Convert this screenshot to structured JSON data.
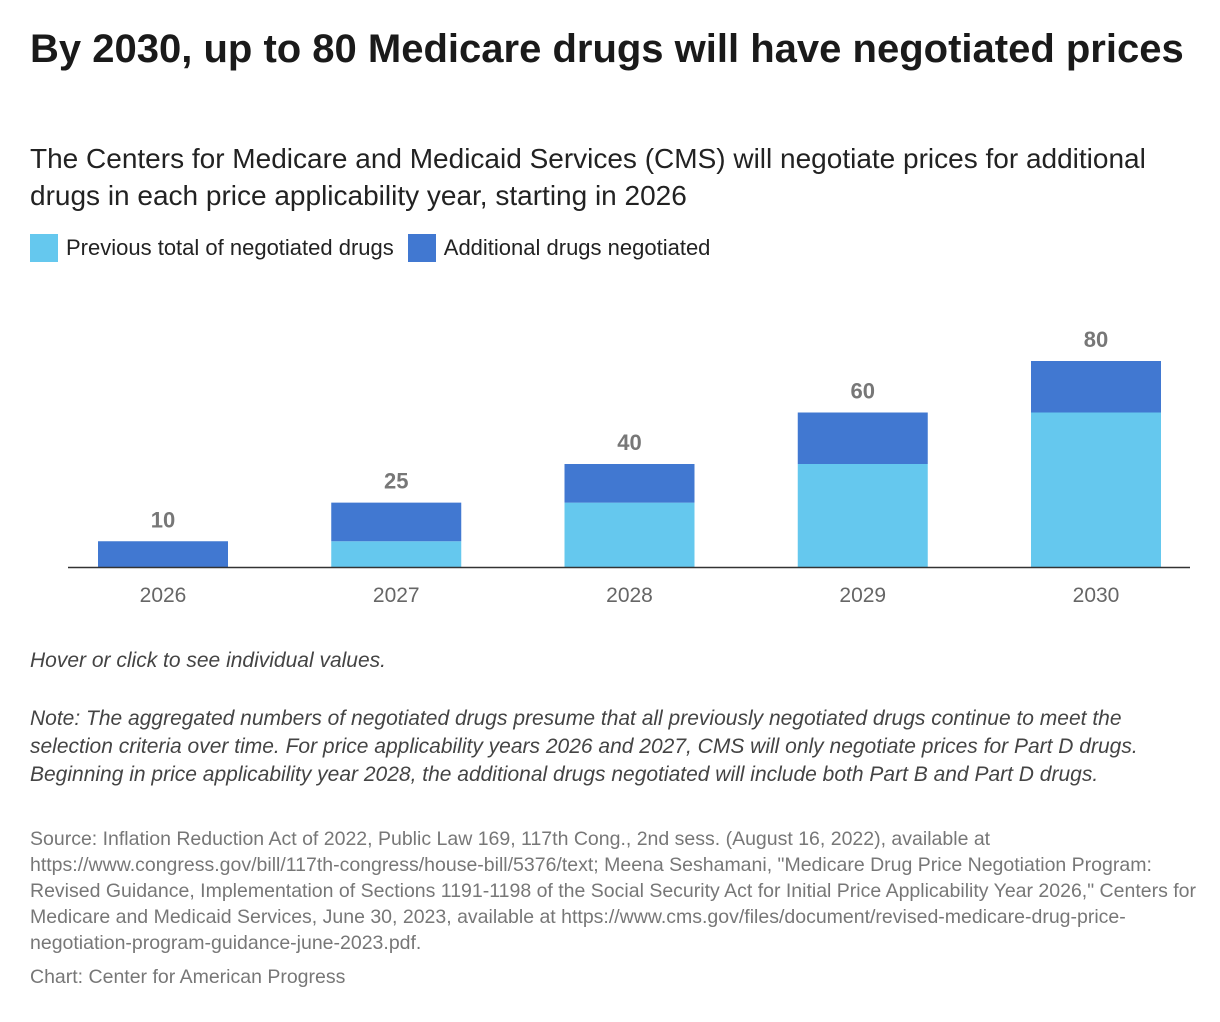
{
  "title": "By 2030, up to 80 Medicare drugs will have negotiated prices",
  "subtitle": "The Centers for Medicare and Medicaid Services (CMS) will negotiate prices for additional drugs in each price applicability year, starting in 2026",
  "hint": "Hover or click to see individual values.",
  "note": "Note: The aggregated numbers of negotiated drugs presume that all previously negotiated drugs continue to meet the selection criteria over time. For price applicability years 2026 and 2027, CMS will only negotiate prices for Part D drugs. Beginning in price applicability year 2028, the additional drugs negotiated will include both Part B and Part D drugs.",
  "source": "Source: Inflation Reduction Act of 2022, Public Law 169, 117th Cong., 2nd sess. (August 16, 2022), available at https://www.congress.gov/bill/117th-congress/house-bill/5376/text; Meena Seshamani, \"Medicare Drug Price Negotiation Program: Revised Guidance, Implementation of Sections 1191-1198 of the Social Security Act for Initial Price Applicability Year 2026,\" Centers for Medicare and Medicaid Services, June 30, 2023, available at https://www.cms.gov/files/document/revised-medicare-drug-price-negotiation-program-guidance-june-2023.pdf.",
  "credit": "Chart: Center for American Progress",
  "chart_data": {
    "type": "bar",
    "stacked": true,
    "categories": [
      "2026",
      "2027",
      "2028",
      "2029",
      "2030"
    ],
    "series": [
      {
        "name": "Previous total of negotiated drugs",
        "values": [
          0,
          10,
          25,
          40,
          60
        ],
        "color": "#65C8EE"
      },
      {
        "name": "Additional drugs negotiated",
        "values": [
          10,
          15,
          15,
          20,
          20
        ],
        "color": "#4178D1"
      }
    ],
    "totals": [
      "10",
      "25",
      "40",
      "60",
      "80"
    ],
    "legend": "top-left",
    "grid": false,
    "ylim": [
      0,
      80
    ]
  }
}
